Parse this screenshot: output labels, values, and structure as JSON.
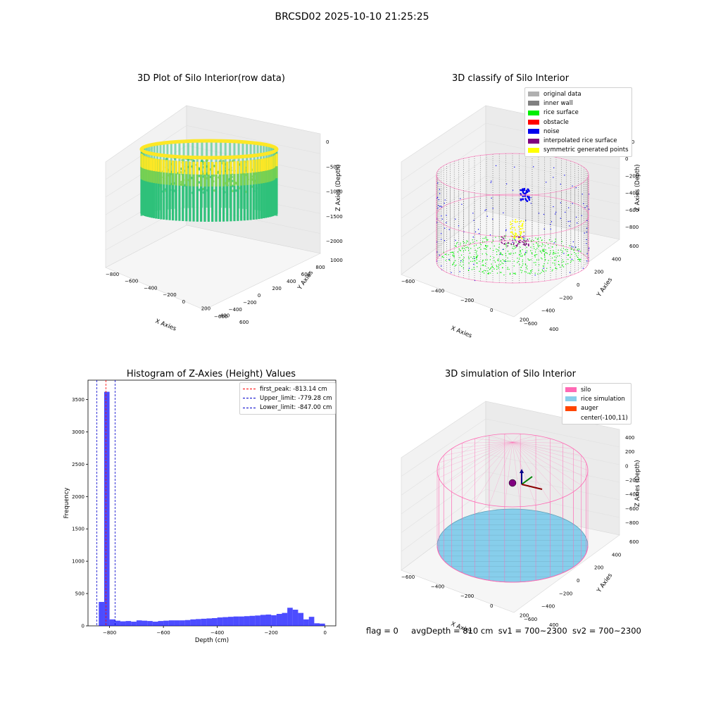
{
  "suptitle": "BRCSD02 2025-10-10 21:25:25",
  "panels": {
    "raw": {
      "title": "3D Plot of Silo Interior(row data)",
      "xlabel": "X Axies",
      "ylabel": "Y Axies",
      "zlabel": "Z Axies (Depth)",
      "xticks": [
        "−800",
        "−600",
        "−400",
        "−200",
        "0",
        "200",
        "400",
        "600"
      ],
      "yticks": [
        "−600",
        "−400",
        "−200",
        "0",
        "200",
        "400",
        "600",
        "800",
        "1000"
      ],
      "zticks": [
        "0",
        "−500",
        "−1000",
        "−1500",
        "−2000"
      ],
      "colormap": [
        "#440154",
        "#21918c",
        "#2ec17a",
        "#7ad151",
        "#fde725"
      ]
    },
    "classify": {
      "title": "3D classify of Silo Interior",
      "xlabel": "X Axies",
      "ylabel": "Y Axies",
      "zlabel": "Z Axies (Depth)",
      "xticks": [
        "−600",
        "−400",
        "−200",
        "0",
        "200",
        "400"
      ],
      "yticks": [
        "−600",
        "−400",
        "−200",
        "0",
        "200",
        "400",
        "600"
      ],
      "zticks": [
        "200",
        "0",
        "−200",
        "−400",
        "−600",
        "−800"
      ],
      "legend": [
        {
          "label": "original data",
          "color": "#b0b0b0"
        },
        {
          "label": "inner wall",
          "color": "#808080"
        },
        {
          "label": "rice surface",
          "color": "#00ee00"
        },
        {
          "label": "obstacle",
          "color": "#ff0000"
        },
        {
          "label": "noise",
          "color": "#0000ee"
        },
        {
          "label": "interpolated rice surface",
          "color": "#800080"
        },
        {
          "label": "symmetric generated points",
          "color": "#ffff00"
        }
      ],
      "extra_colors": {
        "boundary": "#ff69b4"
      }
    },
    "histogram": {
      "title": "Histogram of Z-Axies (Height) Values",
      "xlabel": "Depth (cm)",
      "ylabel": "Frequency",
      "legend": [
        {
          "label": "first_peak: -813.14 cm",
          "color": "#ff0000"
        },
        {
          "label": "Upper_limit: -779.28 cm",
          "color": "#0000cc"
        },
        {
          "label": "Lower_limit: -847.00 cm",
          "color": "#0000cc"
        }
      ]
    },
    "simulation": {
      "title": "3D simulation of Silo Interior",
      "xlabel": "X Axies",
      "ylabel": "Y Axies",
      "zlabel": "Z Axies (Depth)",
      "xticks": [
        "−600",
        "−400",
        "−200",
        "0",
        "200",
        "400"
      ],
      "yticks": [
        "−600",
        "−400",
        "−200",
        "0",
        "200",
        "400",
        "600"
      ],
      "zticks": [
        "400",
        "200",
        "0",
        "−200",
        "−400",
        "−600",
        "−800"
      ],
      "legend": [
        {
          "label": "silo",
          "color": "#ff69b4"
        },
        {
          "label": "rice simulation",
          "color": "#87ceeb"
        },
        {
          "label": "auger",
          "color": "#ff4500"
        },
        {
          "label": "center(-100,11)",
          "color": ""
        }
      ],
      "extra_colors": {
        "center": "#800080",
        "arrow_x": "#8b0000",
        "arrow_y": "#008000",
        "arrow_z": "#00008b"
      }
    }
  },
  "footer": {
    "flag": "flag = 0",
    "avg": "avgDepth = 810 cm",
    "sv1": "sv1 = 700~2300",
    "sv2": "sv2 = 700~2300"
  },
  "chart_data": [
    {
      "type": "scatter",
      "title": "3D Plot of Silo Interior(row data)",
      "xlabel": "X Axies",
      "ylabel": "Y Axies",
      "zlabel": "Z Axies (Depth)",
      "xlim": [
        -800,
        600
      ],
      "ylim": [
        -600,
        1000
      ],
      "zlim": [
        -2200,
        0
      ]
    },
    {
      "type": "scatter",
      "title": "3D classify of Silo Interior",
      "xlabel": "X Axies",
      "ylabel": "Y Axies",
      "zlabel": "Z Axies (Depth)",
      "xlim": [
        -700,
        500
      ],
      "ylim": [
        -600,
        700
      ],
      "zlim": [
        -850,
        250
      ],
      "series": [
        {
          "name": "original data"
        },
        {
          "name": "inner wall"
        },
        {
          "name": "rice surface"
        },
        {
          "name": "obstacle"
        },
        {
          "name": "noise"
        },
        {
          "name": "interpolated rice surface"
        },
        {
          "name": "symmetric generated points"
        }
      ],
      "legend": "top-right"
    },
    {
      "type": "bar",
      "title": "Histogram of Z-Axies (Height) Values",
      "xlabel": "Depth (cm)",
      "ylabel": "Frequency",
      "xlim": [
        -880,
        40
      ],
      "ylim": [
        0,
        3800
      ],
      "xticks": [
        -800,
        -600,
        -400,
        -200,
        0
      ],
      "yticks": [
        0,
        500,
        1000,
        1500,
        2000,
        2500,
        3000,
        3500
      ],
      "bin_width": 20,
      "bin_starts": [
        -840,
        -820,
        -800,
        -780,
        -760,
        -740,
        -720,
        -700,
        -680,
        -660,
        -640,
        -620,
        -600,
        -580,
        -560,
        -540,
        -520,
        -500,
        -480,
        -460,
        -440,
        -420,
        -400,
        -380,
        -360,
        -340,
        -320,
        -300,
        -280,
        -260,
        -240,
        -220,
        -200,
        -180,
        -160,
        -140,
        -120,
        -100,
        -80,
        -60,
        -40,
        -20
      ],
      "values": [
        370,
        3620,
        100,
        80,
        70,
        75,
        65,
        85,
        80,
        75,
        65,
        75,
        80,
        85,
        85,
        85,
        90,
        100,
        105,
        110,
        115,
        120,
        130,
        135,
        140,
        145,
        145,
        150,
        155,
        160,
        170,
        175,
        165,
        185,
        200,
        280,
        250,
        200,
        100,
        140,
        40,
        35
      ],
      "lines": [
        {
          "name": "first_peak: -813.14 cm",
          "x": -813.14
        },
        {
          "name": "Upper_limit: -779.28 cm",
          "x": -779.28
        },
        {
          "name": "Lower_limit: -847.00 cm",
          "x": -847.0
        }
      ],
      "legend": "top-right"
    },
    {
      "type": "scatter",
      "title": "3D simulation of Silo Interior",
      "xlabel": "X Axies",
      "ylabel": "Y Axies",
      "zlabel": "Z Axies (Depth)",
      "xlim": [
        -700,
        500
      ],
      "ylim": [
        -600,
        700
      ],
      "zlim": [
        -850,
        450
      ],
      "series": [
        {
          "name": "silo"
        },
        {
          "name": "rice simulation"
        },
        {
          "name": "auger"
        },
        {
          "name": "center(-100,11)"
        }
      ],
      "legend": "top-right"
    }
  ]
}
